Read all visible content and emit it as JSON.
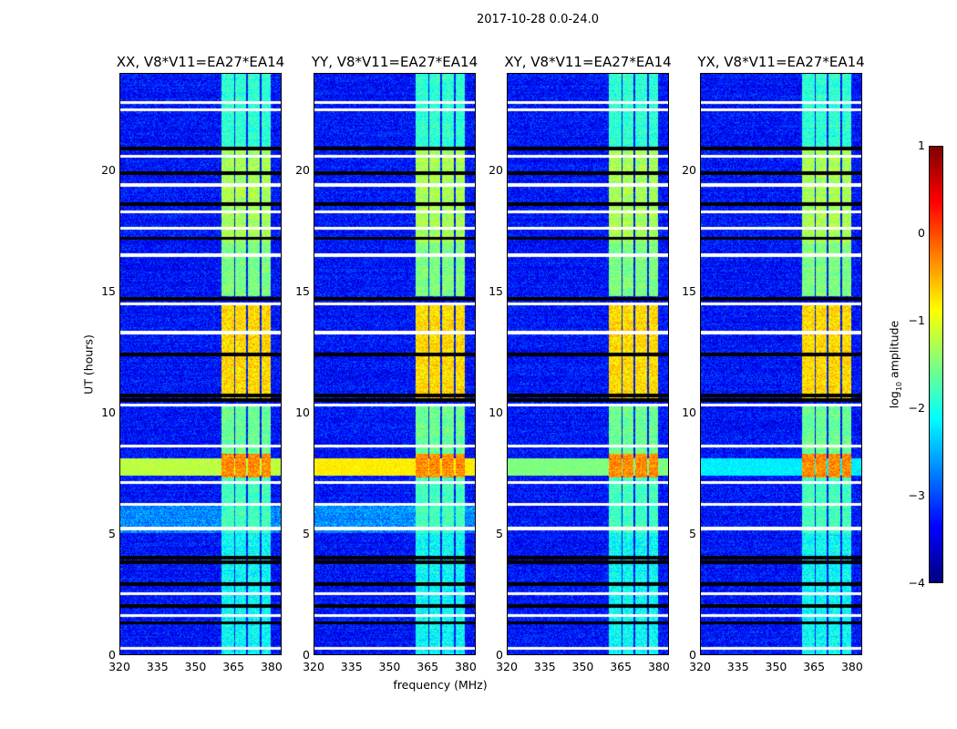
{
  "chart_data": {
    "type": "heatmap",
    "title": "2017-10-28 0.0-24.0",
    "xlabel": "frequency (MHz)",
    "ylabel": "UT (hours)",
    "xlim": [
      320,
      384
    ],
    "ylim": [
      0,
      24
    ],
    "xticks": [
      320,
      335,
      350,
      365,
      380
    ],
    "yticks": [
      0,
      5,
      10,
      15,
      20
    ],
    "panels": [
      {
        "title": "XX, V8*V11=EA27*EA14",
        "broadband_level": -1.2
      },
      {
        "title": "YY, V8*V11=EA27*EA14",
        "broadband_level": -0.8
      },
      {
        "title": "XY, V8*V11=EA27*EA14",
        "broadband_level": -1.5
      },
      {
        "title": "YX, V8*V11=EA27*EA14",
        "broadband_level": -2.2
      }
    ],
    "bands_mhz": [
      [
        360.4,
        365.3
      ],
      [
        366.0,
        370.0
      ],
      [
        371.0,
        375.5
      ],
      [
        376.3,
        380.0
      ]
    ],
    "band_levels": [
      {
        "t": [
          0,
          5
        ],
        "level": -2.1
      },
      {
        "t": [
          5,
          7.3
        ],
        "level": -1.8
      },
      {
        "t": [
          7.3,
          8.3
        ],
        "level": -0.3
      },
      {
        "t": [
          8.3,
          10.3
        ],
        "level": -1.6
      },
      {
        "t": [
          10.5,
          14.5
        ],
        "level": -0.7
      },
      {
        "t": [
          14.8,
          17
        ],
        "level": -1.5
      },
      {
        "t": [
          17,
          21
        ],
        "level": -1.3
      },
      {
        "t": [
          21,
          24
        ],
        "level": -1.9
      }
    ],
    "background_level": -3.3,
    "broadband_t": [
      7.4,
      8.1
    ],
    "flagged_white_hours": [
      0.25,
      1.6,
      2.5,
      5.2,
      6.2,
      7.1,
      8.6,
      10.3,
      13.3,
      14.5,
      16.5,
      17.6,
      18.3,
      19.4,
      20.6,
      22.5,
      22.8
    ],
    "flagged_black_hours": [
      1.3,
      2.0,
      2.9,
      3.8,
      4.0,
      10.5,
      10.7,
      12.4,
      14.7,
      17.2,
      18.6,
      19.9,
      20.9
    ],
    "colorbar": {
      "label_main": "log",
      "label_sub": "10",
      "label_rest": " amplitude",
      "range": [
        -4,
        1
      ],
      "ticks": [
        1,
        0,
        -1,
        -2,
        -3,
        -4
      ],
      "colormap": "jet"
    }
  }
}
